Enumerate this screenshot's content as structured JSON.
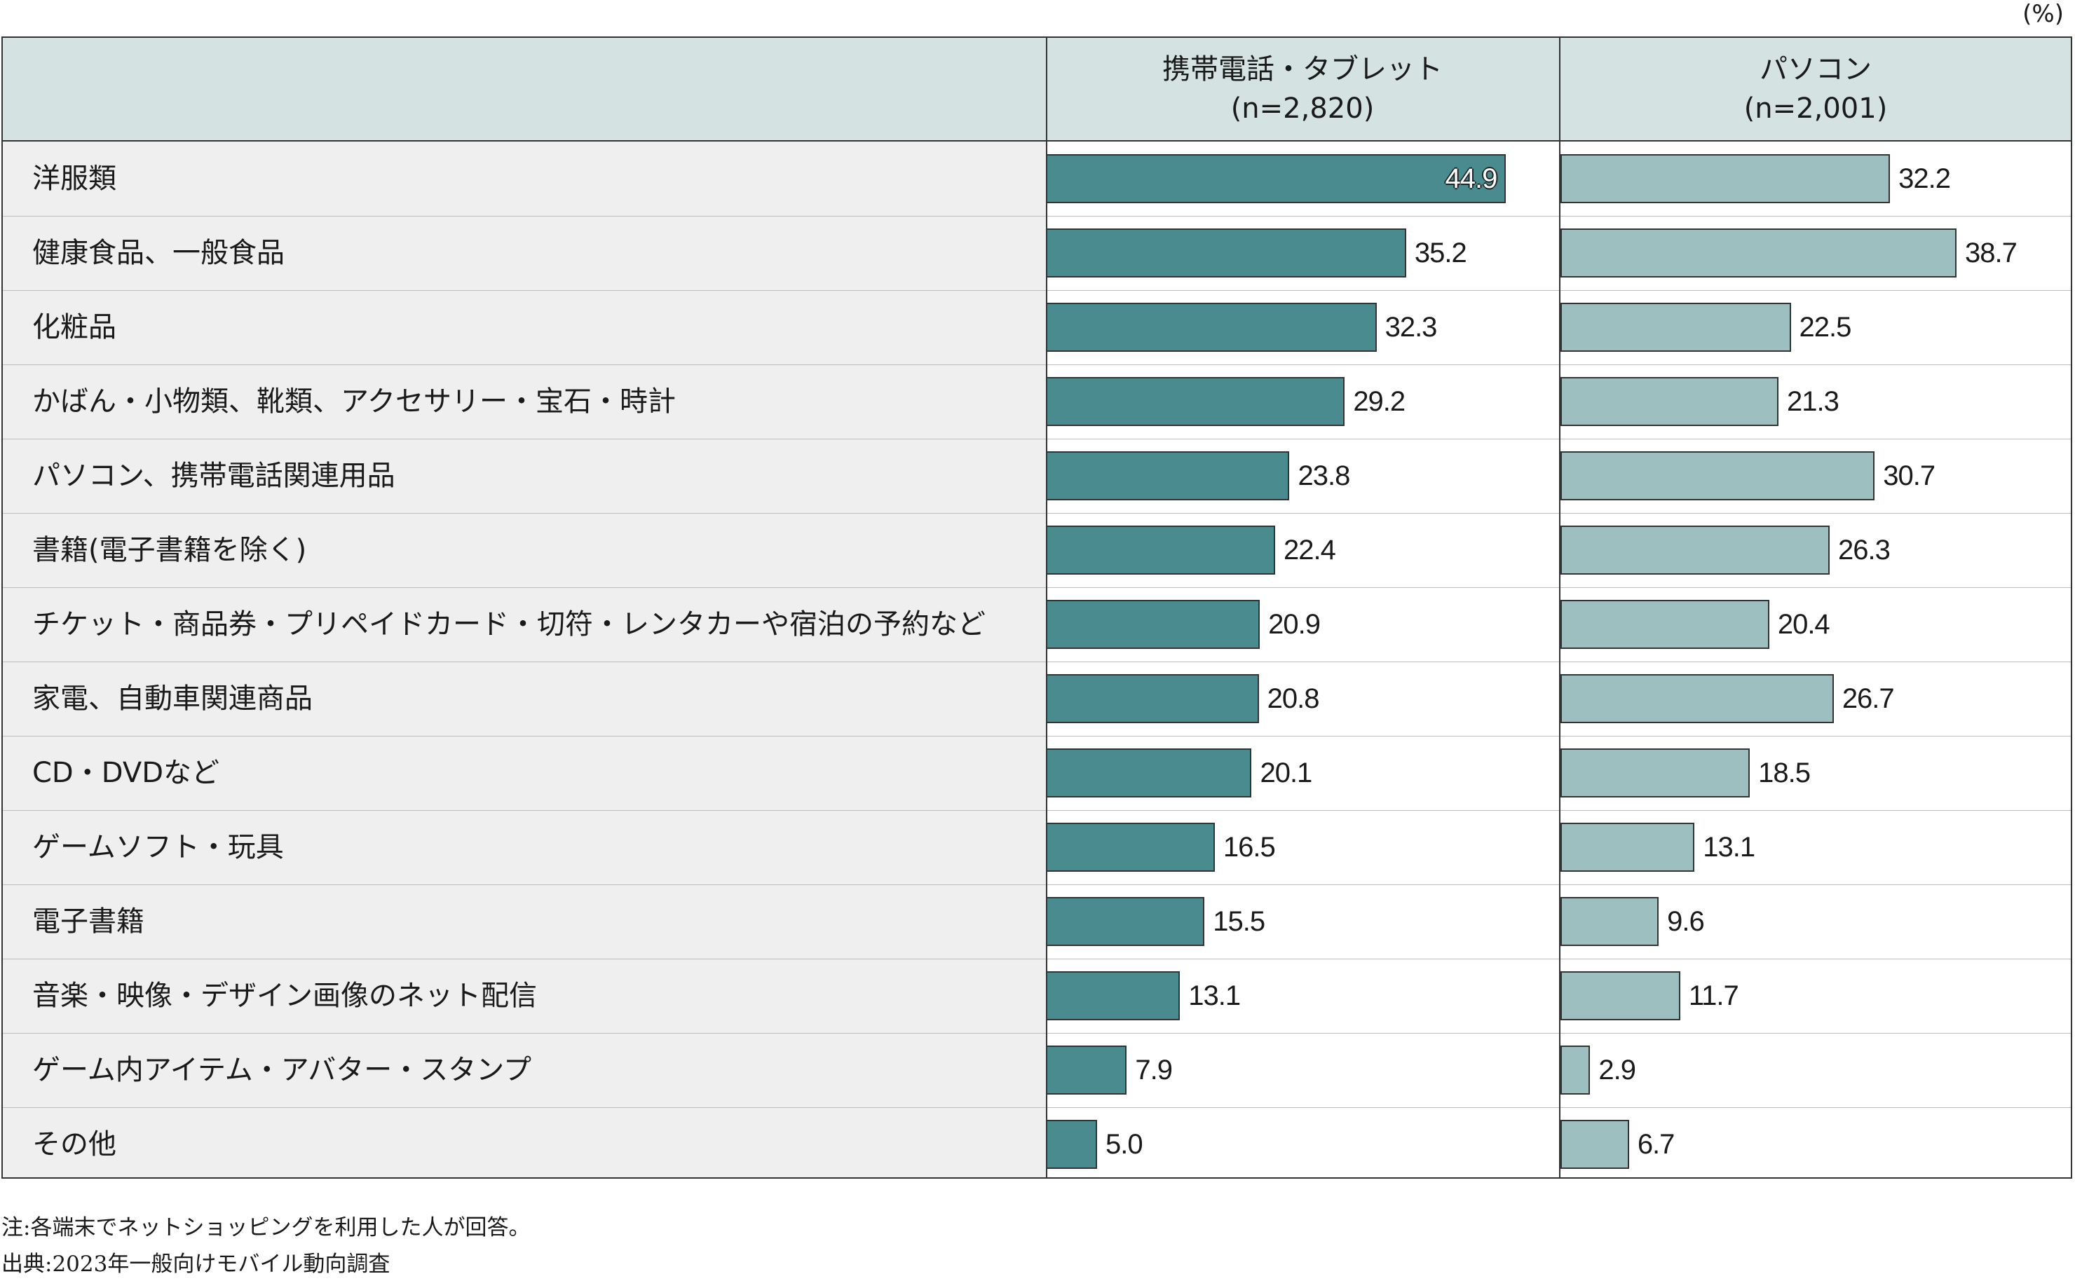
{
  "unit": "(%)",
  "colors": {
    "mobile": "#498b8f",
    "pc": "#9ebfc0",
    "header_bg": "#d4e2e2",
    "label_bg": "#efefef"
  },
  "header": {
    "col1_title": "携帯電話・タブレット",
    "col1_n": "(n=2,820)",
    "col2_title": "パソコン",
    "col2_n": "(n=2,001)"
  },
  "chart_data": {
    "type": "bar",
    "orientation": "horizontal",
    "categories": [
      "洋服類",
      "健康食品、一般食品",
      "化粧品",
      "かばん・小物類、靴類、アクセサリー・宝石・時計",
      "パソコン、携帯電話関連用品",
      "書籍(電子書籍を除く)",
      "チケット・商品券・プリペイドカード・切符・レンタカーや宿泊の予約など",
      "家電、自動車関連商品",
      "CD・DVDなど",
      "ゲームソフト・玩具",
      "電子書籍",
      "音楽・映像・デザイン画像のネット配信",
      "ゲーム内アイテム・アバター・スタンプ",
      "その他"
    ],
    "series": [
      {
        "name": "携帯電話・タブレット(n=2,820)",
        "values": [
          44.9,
          35.2,
          32.3,
          29.2,
          23.8,
          22.4,
          20.9,
          20.8,
          20.1,
          16.5,
          15.5,
          13.1,
          7.9,
          5.0
        ]
      },
      {
        "name": "パソコン(n=2,001)",
        "values": [
          32.2,
          38.7,
          22.5,
          21.3,
          30.7,
          26.3,
          20.4,
          26.7,
          18.5,
          13.1,
          9.6,
          11.7,
          2.9,
          6.7
        ]
      }
    ],
    "value_labels": [
      [
        "44.9",
        "35.2",
        "32.3",
        "29.2",
        "23.8",
        "22.4",
        "20.9",
        "20.8",
        "20.1",
        "16.5",
        "15.5",
        "13.1",
        "7.9",
        "5.0"
      ],
      [
        "32.2",
        "38.7",
        "22.5",
        "21.3",
        "30.7",
        "26.3",
        "20.4",
        "26.7",
        "18.5",
        "13.1",
        "9.6",
        "11.7",
        "2.9",
        "6.7"
      ]
    ],
    "xlim": [
      0,
      60
    ],
    "grid": false,
    "legend": "none"
  },
  "notes": {
    "note": "注:各端末でネットショッピングを利用した人が回答。",
    "source": "出典:2023年一般向けモバイル動向調査"
  }
}
